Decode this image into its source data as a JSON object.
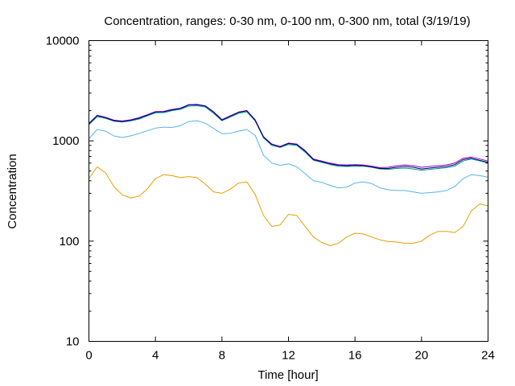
{
  "chart_data": {
    "type": "line",
    "title": "Concentration, ranges: 0-30 nm, 0-100 nm, 0-300 nm, total (3/19/19)",
    "xlabel": "Time [hour]",
    "ylabel": "Concentration",
    "xlim": [
      0,
      24
    ],
    "ylim": [
      10,
      10000
    ],
    "yscale": "log",
    "grid": false,
    "legend": "none",
    "x_ticks": [
      "0",
      "4",
      "8",
      "12",
      "16",
      "20",
      "24"
    ],
    "x_tick_values": [
      0,
      4,
      8,
      12,
      16,
      20,
      24
    ],
    "y_ticks": [
      "10",
      "100",
      "1000",
      "10000"
    ],
    "y_tick_values": [
      10,
      100,
      1000,
      10000
    ],
    "x": [
      0,
      0.5,
      1,
      1.5,
      2,
      2.5,
      3,
      3.5,
      4,
      4.5,
      5,
      5.5,
      6,
      6.5,
      7,
      7.5,
      8,
      8.5,
      9,
      9.5,
      10,
      10.5,
      11,
      11.5,
      12,
      12.5,
      13,
      13.5,
      14,
      14.5,
      15,
      15.5,
      16,
      16.5,
      17,
      17.5,
      18,
      18.5,
      19,
      19.5,
      20,
      20.5,
      21,
      21.5,
      22,
      22.5,
      23,
      23.5,
      24
    ],
    "series": [
      {
        "color": "#e69f00",
        "values": [
          420,
          550,
          480,
          350,
          290,
          270,
          280,
          330,
          420,
          460,
          450,
          430,
          440,
          430,
          370,
          310,
          300,
          330,
          380,
          390,
          290,
          180,
          140,
          145,
          185,
          180,
          140,
          110,
          97,
          90,
          95,
          110,
          120,
          118,
          110,
          103,
          99,
          98,
          95,
          95,
          100,
          115,
          125,
          125,
          122,
          140,
          200,
          235,
          225
        ]
      },
      {
        "color": "#56b4e9",
        "values": [
          1050,
          1300,
          1250,
          1120,
          1080,
          1120,
          1180,
          1260,
          1340,
          1370,
          1360,
          1420,
          1560,
          1590,
          1500,
          1330,
          1180,
          1190,
          1250,
          1300,
          1130,
          720,
          600,
          570,
          590,
          550,
          470,
          400,
          385,
          360,
          340,
          345,
          380,
          390,
          375,
          340,
          325,
          320,
          320,
          310,
          300,
          305,
          310,
          320,
          350,
          420,
          460,
          450,
          435
        ]
      },
      {
        "color": "#009e73",
        "values": [
          1450,
          1740,
          1680,
          1570,
          1540,
          1580,
          1650,
          1770,
          1900,
          1910,
          2000,
          2060,
          2220,
          2240,
          2170,
          1880,
          1590,
          1730,
          1880,
          1950,
          1570,
          1070,
          900,
          860,
          920,
          900,
          770,
          640,
          610,
          580,
          560,
          555,
          560,
          560,
          545,
          525,
          520,
          530,
          535,
          525,
          510,
          520,
          530,
          540,
          560,
          630,
          660,
          630,
          600
        ]
      },
      {
        "color": "#9400d3",
        "values": [
          1500,
          1800,
          1720,
          1610,
          1580,
          1620,
          1700,
          1820,
          1960,
          1970,
          2060,
          2120,
          2300,
          2310,
          2240,
          1950,
          1630,
          1780,
          1940,
          2010,
          1620,
          1100,
          930,
          880,
          950,
          930,
          800,
          660,
          630,
          600,
          580,
          575,
          580,
          575,
          560,
          540,
          545,
          565,
          575,
          565,
          545,
          555,
          565,
          575,
          600,
          670,
          690,
          660,
          630
        ]
      },
      {
        "color": "#000080",
        "values": [
          1480,
          1780,
          1700,
          1590,
          1560,
          1600,
          1680,
          1800,
          1940,
          1950,
          2040,
          2100,
          2280,
          2290,
          2220,
          1930,
          1610,
          1760,
          1920,
          1990,
          1600,
          1090,
          920,
          870,
          940,
          920,
          790,
          650,
          620,
          590,
          570,
          565,
          570,
          565,
          550,
          530,
          530,
          545,
          555,
          545,
          525,
          535,
          545,
          555,
          580,
          650,
          670,
          640,
          610
        ]
      }
    ]
  }
}
